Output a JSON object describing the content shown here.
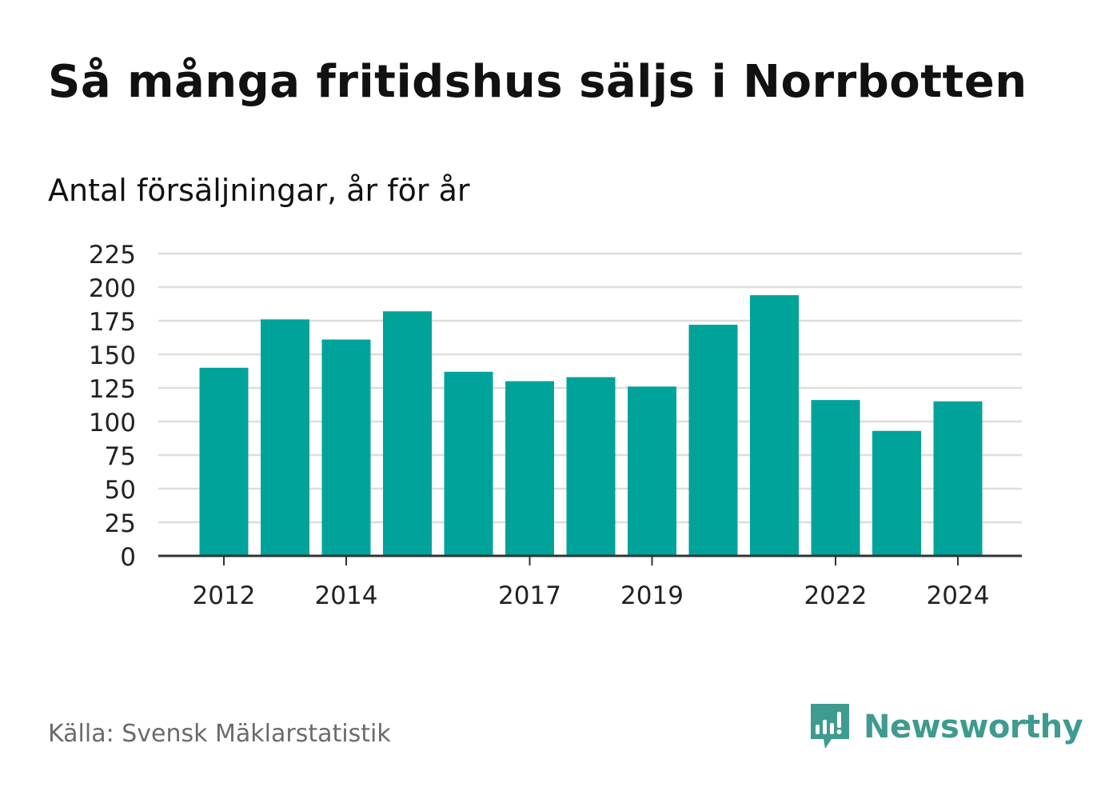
{
  "title": "Så många fritidshus säljs i Norrbotten",
  "subtitle": "Antal försäljningar, år för år",
  "source": "Källa: Svensk Mäklarstatistik",
  "brand": "Newsworthy",
  "colors": {
    "bar": "#00a39a",
    "grid": "#dddddd",
    "axis": "#333333",
    "brand": "#3f9a8f"
  },
  "chart_data": {
    "type": "bar",
    "categories": [
      "2012",
      "2013",
      "2014",
      "2015",
      "2016",
      "2017",
      "2018",
      "2019",
      "2020",
      "2021",
      "2022",
      "2023",
      "2024"
    ],
    "values": [
      140,
      176,
      161,
      182,
      137,
      130,
      133,
      126,
      172,
      194,
      116,
      93,
      115
    ],
    "x_tick_labels": [
      "2012",
      "2014",
      "2017",
      "2019",
      "2022",
      "2024"
    ],
    "y_ticks": [
      0,
      25,
      50,
      75,
      100,
      125,
      150,
      175,
      200,
      225
    ],
    "ylim": [
      0,
      225
    ],
    "grid": true,
    "legend": "none"
  }
}
